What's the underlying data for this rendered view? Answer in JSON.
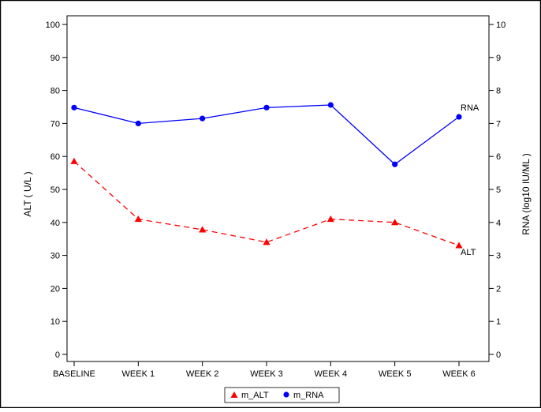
{
  "chart_data": {
    "type": "line",
    "categories": [
      "BASELINE",
      "WEEK 1",
      "WEEK 2",
      "WEEK 3",
      "WEEK 4",
      "WEEK 5",
      "WEEK 6"
    ],
    "y_left": {
      "label": "ALT ( U/L )",
      "range": [
        0,
        100
      ],
      "ticks": [
        "0",
        "10",
        "20",
        "30",
        "40",
        "50",
        "60",
        "70",
        "80",
        "90",
        "100"
      ]
    },
    "y_right": {
      "label": "RNA (log10 IU/ML )",
      "range": [
        0,
        10
      ],
      "ticks": [
        "0",
        "1",
        "2",
        "3",
        "4",
        "5",
        "6",
        "7",
        "8",
        "9",
        "10"
      ]
    },
    "series": [
      {
        "name": "m_ALT",
        "axis": "left",
        "values": [
          58.5,
          41,
          37.8,
          34,
          41,
          40,
          33
        ],
        "color": "#ff0000",
        "marker": "triangle",
        "line_style": "dashed",
        "end_label": "ALT"
      },
      {
        "name": "m_RNA",
        "axis": "right",
        "values": [
          7.48,
          7.0,
          7.15,
          7.48,
          7.56,
          5.76,
          7.2
        ],
        "color": "#0000ff",
        "marker": "circle",
        "line_style": "solid",
        "end_label": "RNA"
      }
    ],
    "legend_position": "bottom",
    "grid": false
  }
}
